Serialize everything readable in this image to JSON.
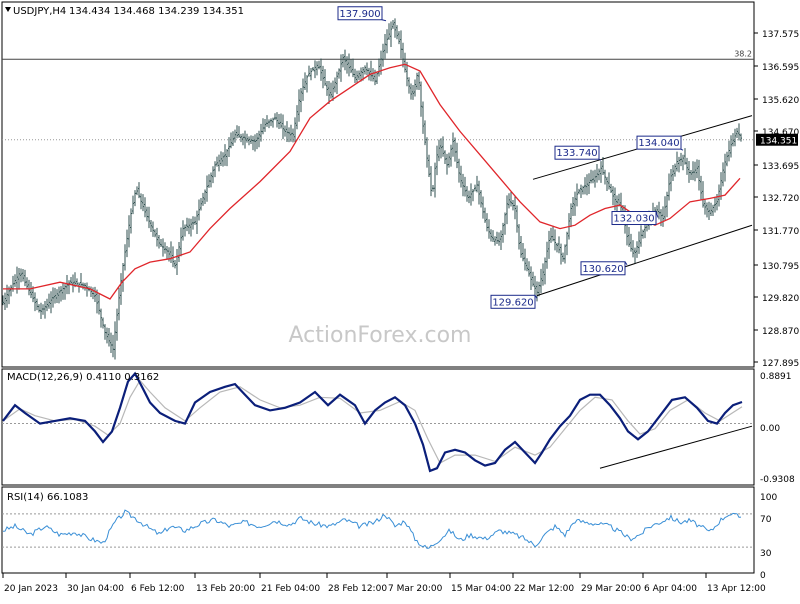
{
  "header": {
    "symbol_label": "USDJPY,H4",
    "ohlc_label": "134.434 134.468 134.239 134.351"
  },
  "watermark": "ActionForex.com",
  "colors": {
    "candle": "#2f4f4f",
    "ma": "#e0262b",
    "macd": "#0b1f7a",
    "signal": "#b8b8b8",
    "rsi": "#3a8fd6",
    "trend": "#000000",
    "callout_border": "#1b2a8a",
    "callout_text": "#1b2a8a",
    "grid": "#999999"
  },
  "chart_data": [
    {
      "type": "candlestick",
      "panel": "price",
      "ylim": [
        127.6,
        138.4
      ],
      "y_ticks": [
        "137.575",
        "136.595",
        "135.620",
        "134.670",
        "133.695",
        "132.720",
        "131.770",
        "130.795",
        "129.820",
        "128.870",
        "127.895"
      ],
      "x_tick_labels": [
        "20 Jan 2023",
        "30 Jan 04:00",
        "6 Feb 12:00",
        "13 Feb 20:00",
        "21 Feb 04:00",
        "28 Feb 12:00",
        "7 Mar 20:00",
        "15 Mar 04:00",
        "22 Mar 12:00",
        "29 Mar 20:00",
        "6 Apr 04:00",
        "13 Apr 12:00"
      ],
      "current_price": "134.351",
      "level_label": "38.2",
      "level_value": 136.75,
      "annotations": [
        {
          "label": "137.900",
          "value": 137.9,
          "t": 386
        },
        {
          "label": "133.740",
          "value": 133.74,
          "t": 601
        },
        {
          "label": "134.040",
          "value": 134.04,
          "t": 683
        },
        {
          "label": "132.030",
          "value": 132.03,
          "t": 658
        },
        {
          "label": "130.620",
          "value": 130.62,
          "t": 627
        },
        {
          "label": "129.620",
          "value": 129.62,
          "t": 537
        }
      ],
      "price_path": [
        [
          3,
          129.5
        ],
        [
          10,
          129.9
        ],
        [
          20,
          130.4
        ],
        [
          30,
          129.8
        ],
        [
          40,
          129.2
        ],
        [
          55,
          129.7
        ],
        [
          70,
          130.1
        ],
        [
          85,
          130.0
        ],
        [
          95,
          129.7
        ],
        [
          105,
          128.6
        ],
        [
          113,
          128.1
        ],
        [
          122,
          130.4
        ],
        [
          130,
          132.0
        ],
        [
          136,
          132.9
        ],
        [
          145,
          132.2
        ],
        [
          158,
          131.3
        ],
        [
          168,
          131.0
        ],
        [
          175,
          130.6
        ],
        [
          183,
          131.7
        ],
        [
          195,
          131.9
        ],
        [
          205,
          132.8
        ],
        [
          215,
          133.6
        ],
        [
          225,
          133.9
        ],
        [
          235,
          134.5
        ],
        [
          245,
          134.4
        ],
        [
          255,
          134.3
        ],
        [
          265,
          134.8
        ],
        [
          275,
          135.0
        ],
        [
          285,
          134.6
        ],
        [
          293,
          134.5
        ],
        [
          300,
          135.7
        ],
        [
          308,
          136.3
        ],
        [
          318,
          136.6
        ],
        [
          330,
          135.6
        ],
        [
          343,
          136.8
        ],
        [
          355,
          136.2
        ],
        [
          365,
          136.5
        ],
        [
          375,
          136.1
        ],
        [
          385,
          137.2
        ],
        [
          393,
          137.8
        ],
        [
          400,
          137.2
        ],
        [
          406,
          136.3
        ],
        [
          412,
          135.6
        ],
        [
          418,
          136.4
        ],
        [
          422,
          135.0
        ],
        [
          427,
          133.8
        ],
        [
          432,
          132.6
        ],
        [
          436,
          133.8
        ],
        [
          440,
          134.2
        ],
        [
          447,
          133.6
        ],
        [
          453,
          134.3
        ],
        [
          460,
          133.2
        ],
        [
          468,
          132.6
        ],
        [
          477,
          133.0
        ],
        [
          486,
          131.8
        ],
        [
          492,
          131.4
        ],
        [
          500,
          131.3
        ],
        [
          508,
          132.6
        ],
        [
          515,
          132.3
        ],
        [
          520,
          131.0
        ],
        [
          526,
          130.6
        ],
        [
          532,
          130.1
        ],
        [
          537,
          129.8
        ],
        [
          543,
          130.4
        ],
        [
          550,
          131.5
        ],
        [
          557,
          131.2
        ],
        [
          563,
          130.8
        ],
        [
          571,
          132.3
        ],
        [
          578,
          132.8
        ],
        [
          586,
          133.0
        ],
        [
          594,
          133.2
        ],
        [
          601,
          133.5
        ],
        [
          607,
          133.1
        ],
        [
          614,
          132.6
        ],
        [
          622,
          132.3
        ],
        [
          628,
          131.3
        ],
        [
          634,
          130.9
        ],
        [
          641,
          131.5
        ],
        [
          648,
          131.9
        ],
        [
          656,
          132.3
        ],
        [
          663,
          132.0
        ],
        [
          670,
          133.2
        ],
        [
          677,
          133.7
        ],
        [
          683,
          133.8
        ],
        [
          690,
          133.3
        ],
        [
          697,
          133.5
        ],
        [
          703,
          132.4
        ],
        [
          710,
          132.2
        ],
        [
          717,
          132.5
        ],
        [
          724,
          133.6
        ],
        [
          731,
          134.2
        ],
        [
          737,
          134.6
        ],
        [
          742,
          134.35
        ]
      ],
      "ma_path": [
        [
          3,
          129.9
        ],
        [
          30,
          129.9
        ],
        [
          60,
          130.1
        ],
        [
          90,
          129.9
        ],
        [
          110,
          129.6
        ],
        [
          122,
          130.1
        ],
        [
          135,
          130.5
        ],
        [
          150,
          130.7
        ],
        [
          170,
          130.8
        ],
        [
          190,
          131.0
        ],
        [
          210,
          131.7
        ],
        [
          230,
          132.3
        ],
        [
          260,
          133.1
        ],
        [
          290,
          134.0
        ],
        [
          310,
          135.0
        ],
        [
          330,
          135.5
        ],
        [
          350,
          135.9
        ],
        [
          370,
          136.3
        ],
        [
          390,
          136.5
        ],
        [
          405,
          136.6
        ],
        [
          420,
          136.4
        ],
        [
          440,
          135.4
        ],
        [
          460,
          134.6
        ],
        [
          480,
          133.9
        ],
        [
          500,
          133.2
        ],
        [
          520,
          132.5
        ],
        [
          540,
          131.9
        ],
        [
          560,
          131.7
        ],
        [
          575,
          131.8
        ],
        [
          590,
          132.1
        ],
        [
          605,
          132.3
        ],
        [
          620,
          132.4
        ],
        [
          640,
          132.0
        ],
        [
          655,
          131.8
        ],
        [
          670,
          132.0
        ],
        [
          690,
          132.5
        ],
        [
          710,
          132.6
        ],
        [
          725,
          132.7
        ],
        [
          740,
          133.2
        ]
      ],
      "trendlines": [
        {
          "from": [
            533,
            133.17
          ],
          "to": [
            752,
            135.07
          ]
        },
        {
          "from": [
            537,
            129.7
          ],
          "to": [
            752,
            131.8
          ]
        }
      ]
    },
    {
      "type": "line",
      "panel": "macd",
      "label": "MACD(12,26,9) 0.4110 0.3162",
      "ylim": [
        -1.15,
        1.0
      ],
      "y_ticks": [
        "0.8891",
        "0.00",
        "-0.9308"
      ],
      "macd_path": [
        [
          3,
          0.05
        ],
        [
          15,
          0.35
        ],
        [
          25,
          0.2
        ],
        [
          40,
          0.0
        ],
        [
          55,
          0.05
        ],
        [
          70,
          0.1
        ],
        [
          85,
          0.05
        ],
        [
          95,
          -0.15
        ],
        [
          103,
          -0.35
        ],
        [
          112,
          -0.15
        ],
        [
          120,
          0.3
        ],
        [
          128,
          0.8
        ],
        [
          135,
          0.95
        ],
        [
          142,
          0.7
        ],
        [
          150,
          0.4
        ],
        [
          160,
          0.2
        ],
        [
          175,
          0.05
        ],
        [
          185,
          0.0
        ],
        [
          195,
          0.4
        ],
        [
          210,
          0.6
        ],
        [
          225,
          0.7
        ],
        [
          235,
          0.75
        ],
        [
          245,
          0.55
        ],
        [
          255,
          0.35
        ],
        [
          270,
          0.25
        ],
        [
          285,
          0.3
        ],
        [
          300,
          0.4
        ],
        [
          315,
          0.6
        ],
        [
          328,
          0.35
        ],
        [
          340,
          0.55
        ],
        [
          355,
          0.35
        ],
        [
          365,
          0.0
        ],
        [
          375,
          0.25
        ],
        [
          385,
          0.4
        ],
        [
          395,
          0.5
        ],
        [
          405,
          0.35
        ],
        [
          415,
          0.0
        ],
        [
          423,
          -0.4
        ],
        [
          430,
          -0.9
        ],
        [
          437,
          -0.85
        ],
        [
          445,
          -0.55
        ],
        [
          455,
          -0.5
        ],
        [
          465,
          -0.55
        ],
        [
          475,
          -0.7
        ],
        [
          485,
          -0.8
        ],
        [
          495,
          -0.75
        ],
        [
          505,
          -0.5
        ],
        [
          515,
          -0.35
        ],
        [
          525,
          -0.55
        ],
        [
          535,
          -0.75
        ],
        [
          542,
          -0.55
        ],
        [
          550,
          -0.3
        ],
        [
          560,
          -0.05
        ],
        [
          570,
          0.15
        ],
        [
          580,
          0.45
        ],
        [
          590,
          0.55
        ],
        [
          600,
          0.55
        ],
        [
          610,
          0.35
        ],
        [
          620,
          0.1
        ],
        [
          628,
          -0.15
        ],
        [
          638,
          -0.3
        ],
        [
          648,
          -0.15
        ],
        [
          660,
          0.15
        ],
        [
          672,
          0.45
        ],
        [
          685,
          0.5
        ],
        [
          697,
          0.3
        ],
        [
          708,
          0.05
        ],
        [
          717,
          0.0
        ],
        [
          725,
          0.2
        ],
        [
          733,
          0.35
        ],
        [
          742,
          0.41
        ]
      ],
      "signal_path": [
        [
          3,
          0.05
        ],
        [
          20,
          0.28
        ],
        [
          35,
          0.15
        ],
        [
          55,
          0.05
        ],
        [
          75,
          0.08
        ],
        [
          95,
          -0.05
        ],
        [
          108,
          -0.22
        ],
        [
          120,
          0.0
        ],
        [
          130,
          0.5
        ],
        [
          140,
          0.82
        ],
        [
          150,
          0.6
        ],
        [
          165,
          0.3
        ],
        [
          185,
          0.05
        ],
        [
          200,
          0.3
        ],
        [
          220,
          0.6
        ],
        [
          240,
          0.7
        ],
        [
          260,
          0.45
        ],
        [
          280,
          0.3
        ],
        [
          300,
          0.35
        ],
        [
          320,
          0.5
        ],
        [
          340,
          0.48
        ],
        [
          360,
          0.2
        ],
        [
          380,
          0.25
        ],
        [
          400,
          0.42
        ],
        [
          415,
          0.25
        ],
        [
          428,
          -0.3
        ],
        [
          440,
          -0.75
        ],
        [
          455,
          -0.6
        ],
        [
          475,
          -0.6
        ],
        [
          495,
          -0.72
        ],
        [
          515,
          -0.45
        ],
        [
          535,
          -0.6
        ],
        [
          550,
          -0.45
        ],
        [
          565,
          -0.1
        ],
        [
          580,
          0.25
        ],
        [
          595,
          0.5
        ],
        [
          612,
          0.45
        ],
        [
          628,
          0.05
        ],
        [
          640,
          -0.2
        ],
        [
          655,
          -0.1
        ],
        [
          670,
          0.25
        ],
        [
          688,
          0.45
        ],
        [
          705,
          0.2
        ],
        [
          720,
          0.05
        ],
        [
          742,
          0.32
        ]
      ],
      "trendline": {
        "from": [
          600,
          -0.85
        ],
        "to": [
          752,
          -0.05
        ]
      }
    },
    {
      "type": "line",
      "panel": "rsi",
      "label": "RSI(14) 66.1083",
      "ylim": [
        0,
        100
      ],
      "y_ticks": [
        "100",
        "70",
        "30",
        "0"
      ],
      "rsi_path": [
        [
          3,
          50
        ],
        [
          15,
          55
        ],
        [
          30,
          45
        ],
        [
          45,
          55
        ],
        [
          60,
          45
        ],
        [
          75,
          48
        ],
        [
          90,
          40
        ],
        [
          103,
          35
        ],
        [
          115,
          60
        ],
        [
          125,
          72
        ],
        [
          135,
          65
        ],
        [
          150,
          52
        ],
        [
          160,
          45
        ],
        [
          170,
          55
        ],
        [
          185,
          50
        ],
        [
          200,
          58
        ],
        [
          215,
          63
        ],
        [
          230,
          55
        ],
        [
          245,
          60
        ],
        [
          260,
          55
        ],
        [
          275,
          62
        ],
        [
          290,
          57
        ],
        [
          300,
          65
        ],
        [
          315,
          58
        ],
        [
          330,
          55
        ],
        [
          345,
          63
        ],
        [
          360,
          55
        ],
        [
          375,
          60
        ],
        [
          385,
          70
        ],
        [
          395,
          55
        ],
        [
          405,
          62
        ],
        [
          415,
          40
        ],
        [
          422,
          32
        ],
        [
          428,
          28
        ],
        [
          438,
          38
        ],
        [
          450,
          50
        ],
        [
          460,
          38
        ],
        [
          470,
          45
        ],
        [
          485,
          40
        ],
        [
          500,
          50
        ],
        [
          515,
          45
        ],
        [
          525,
          40
        ],
        [
          535,
          32
        ],
        [
          545,
          45
        ],
        [
          555,
          55
        ],
        [
          565,
          45
        ],
        [
          575,
          62
        ],
        [
          585,
          60
        ],
        [
          598,
          58
        ],
        [
          610,
          55
        ],
        [
          620,
          48
        ],
        [
          630,
          40
        ],
        [
          640,
          45
        ],
        [
          650,
          55
        ],
        [
          660,
          60
        ],
        [
          670,
          66
        ],
        [
          680,
          60
        ],
        [
          690,
          62
        ],
        [
          700,
          55
        ],
        [
          710,
          48
        ],
        [
          720,
          62
        ],
        [
          728,
          70
        ],
        [
          735,
          68
        ],
        [
          742,
          66
        ]
      ]
    }
  ]
}
